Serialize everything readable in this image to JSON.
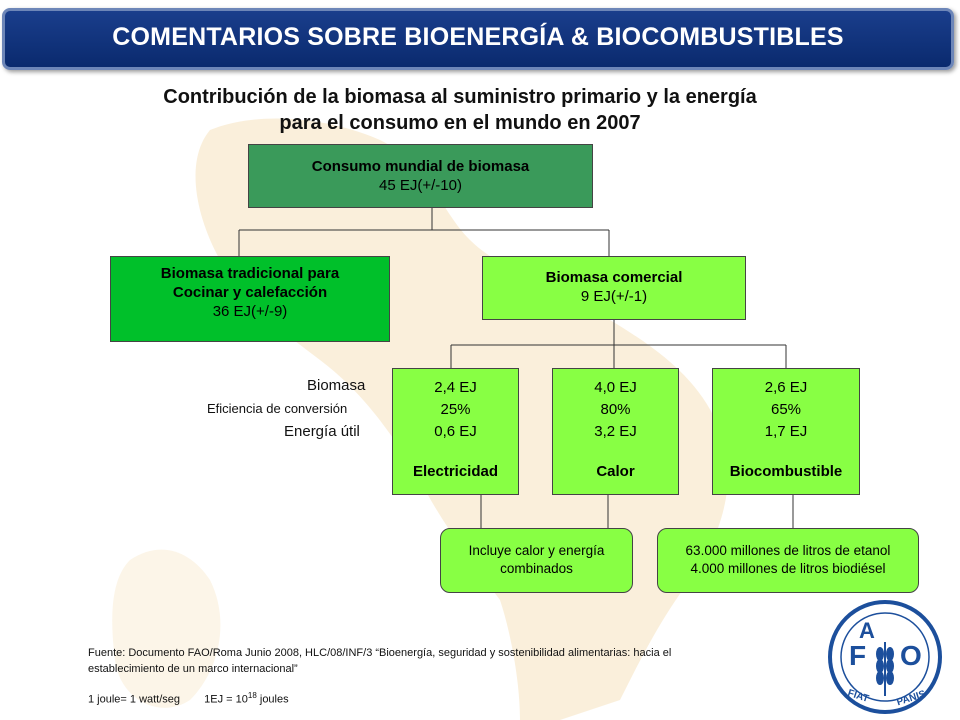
{
  "header": {
    "title": "COMENTARIOS SOBRE  BIOENERGÍA & BIOCOMBUSTIBLES"
  },
  "subtitle": {
    "line1": "Contribución de la biomasa al suministro primario y la energía",
    "line2": "para el consumo en el mundo en 2007"
  },
  "root": {
    "title": "Consumo mundial de biomasa",
    "value": "45 EJ(+/-10)"
  },
  "traditional": {
    "title1": "Biomasa tradicional para",
    "title2": "Cocinar y calefacción",
    "value": "36 EJ(+/-9)"
  },
  "commercial": {
    "title": "Biomasa comercial",
    "value": "9 EJ(+/-1)"
  },
  "side_labels": {
    "biomass": "Biomasa",
    "efficiency": "Eficiencia de conversión",
    "useful": "Energía útil"
  },
  "uses": [
    {
      "biomass": "2,4 EJ",
      "efficiency": "25%",
      "useful": "0,6 EJ",
      "name": "Electricidad"
    },
    {
      "biomass": "4,0 EJ",
      "efficiency": "80%",
      "useful": "3,2 EJ",
      "name": "Calor"
    },
    {
      "biomass": "2,6 EJ",
      "efficiency": "65%",
      "useful": "1,7 EJ",
      "name": "Biocombustible"
    }
  ],
  "notes": {
    "chp_line1": "Incluye calor y energía",
    "chp_line2": "combinados",
    "fuel_line1": "63.000 millones de litros de etanol",
    "fuel_line2": "4.000 millones de litros biodiésel"
  },
  "footer": {
    "source_line1": "Fuente: Documento FAO/Roma Junio 2008, HLC/08/INF/3  “Bioenergía,  seguridad y sostenibilidad alimentarias: hacia el",
    "source_line2": "establecimiento de un marco internacional”",
    "units_joule": "1 joule= 1 watt/seg",
    "units_ej": "1EJ = 10",
    "units_exp": "18",
    "units_tail": " joules"
  },
  "logo": {
    "top_letters": "FAO",
    "motto": "FIAT PANIS"
  },
  "colors": {
    "header": "#0a2a6e",
    "root_box": "#3a9a5a",
    "traditional_box": "#00c02a",
    "light_boxes": "#88ff44",
    "map": "#f3d6a2"
  }
}
